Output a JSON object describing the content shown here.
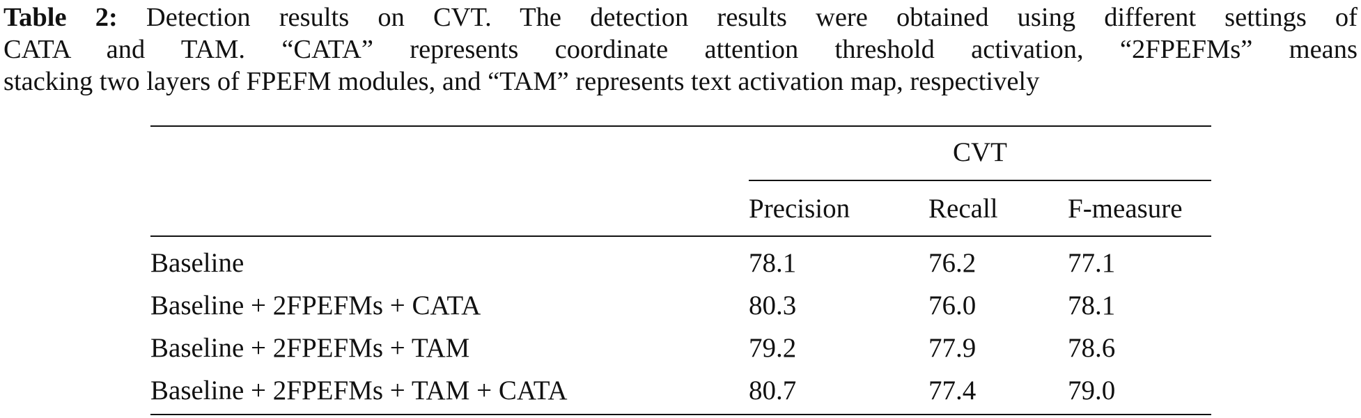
{
  "caption": {
    "label": "Table 2:",
    "line1_rest": "Detection results on CVT. The detection results were obtained using different settings of",
    "line2": "CATA and TAM. “CATA” represents coordinate attention threshold activation, “2FPEFMs” means",
    "line3": "stacking two layers of FPEFM modules, and “TAM” represents text activation map, respectively"
  },
  "table": {
    "group_header": "CVT",
    "method_header": "",
    "columns": [
      "Precision",
      "Recall",
      "F-measure"
    ],
    "rows": [
      {
        "method": "Baseline",
        "precision": "78.1",
        "recall": "76.2",
        "f_measure": "77.1"
      },
      {
        "method": "Baseline + 2FPEFMs + CATA",
        "precision": "80.3",
        "recall": "76.0",
        "f_measure": "78.1"
      },
      {
        "method": "Baseline + 2FPEFMs + TAM",
        "precision": "79.2",
        "recall": "77.9",
        "f_measure": "78.6"
      },
      {
        "method": "Baseline + 2FPEFMs + TAM + CATA",
        "precision": "80.7",
        "recall": "77.4",
        "f_measure": "79.0"
      }
    ]
  }
}
